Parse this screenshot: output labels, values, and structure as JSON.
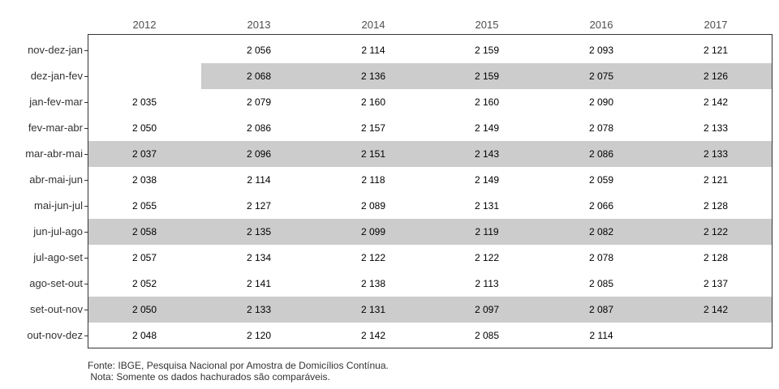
{
  "chart_data": {
    "type": "table",
    "columns": [
      "2012",
      "2013",
      "2014",
      "2015",
      "2016",
      "2017"
    ],
    "rows": [
      {
        "label": "nov-dez-jan",
        "values": [
          "",
          "2 056",
          "2 114",
          "2 159",
          "2 093",
          "2 121"
        ],
        "shaded_from": null
      },
      {
        "label": "dez-jan-fev",
        "values": [
          "",
          "2 068",
          "2 136",
          "2 159",
          "2 075",
          "2 126"
        ],
        "shaded_from": 1
      },
      {
        "label": "jan-fev-mar",
        "values": [
          "2 035",
          "2 079",
          "2 160",
          "2 160",
          "2 090",
          "2 142"
        ],
        "shaded_from": null
      },
      {
        "label": "fev-mar-abr",
        "values": [
          "2 050",
          "2 086",
          "2 157",
          "2 149",
          "2 078",
          "2 133"
        ],
        "shaded_from": null
      },
      {
        "label": "mar-abr-mai",
        "values": [
          "2 037",
          "2 096",
          "2 151",
          "2 143",
          "2 086",
          "2 133"
        ],
        "shaded_from": 0
      },
      {
        "label": "abr-mai-jun",
        "values": [
          "2 038",
          "2 114",
          "2 118",
          "2 149",
          "2 059",
          "2 121"
        ],
        "shaded_from": null
      },
      {
        "label": "mai-jun-jul",
        "values": [
          "2 055",
          "2 127",
          "2 089",
          "2 131",
          "2 066",
          "2 128"
        ],
        "shaded_from": null
      },
      {
        "label": "jun-jul-ago",
        "values": [
          "2 058",
          "2 135",
          "2 099",
          "2 119",
          "2 082",
          "2 122"
        ],
        "shaded_from": 0
      },
      {
        "label": "jul-ago-set",
        "values": [
          "2 057",
          "2 134",
          "2 122",
          "2 122",
          "2 078",
          "2 128"
        ],
        "shaded_from": null
      },
      {
        "label": "ago-set-out",
        "values": [
          "2 052",
          "2 141",
          "2 138",
          "2 113",
          "2 085",
          "2 137"
        ],
        "shaded_from": null
      },
      {
        "label": "set-out-nov",
        "values": [
          "2 050",
          "2 133",
          "2 131",
          "2 097",
          "2 087",
          "2 142"
        ],
        "shaded_from": 0
      },
      {
        "label": "out-nov-dez",
        "values": [
          "2 048",
          "2 120",
          "2 142",
          "2 085",
          "2 114",
          ""
        ],
        "shaded_from": null
      }
    ],
    "shade_color": "#cccccc"
  },
  "footer": {
    "source": "Fonte: IBGE, Pesquisa Nacional por Amostra de Domicílios Contínua.",
    "note": " Nota: Somente os dados hachurados são comparáveis."
  }
}
